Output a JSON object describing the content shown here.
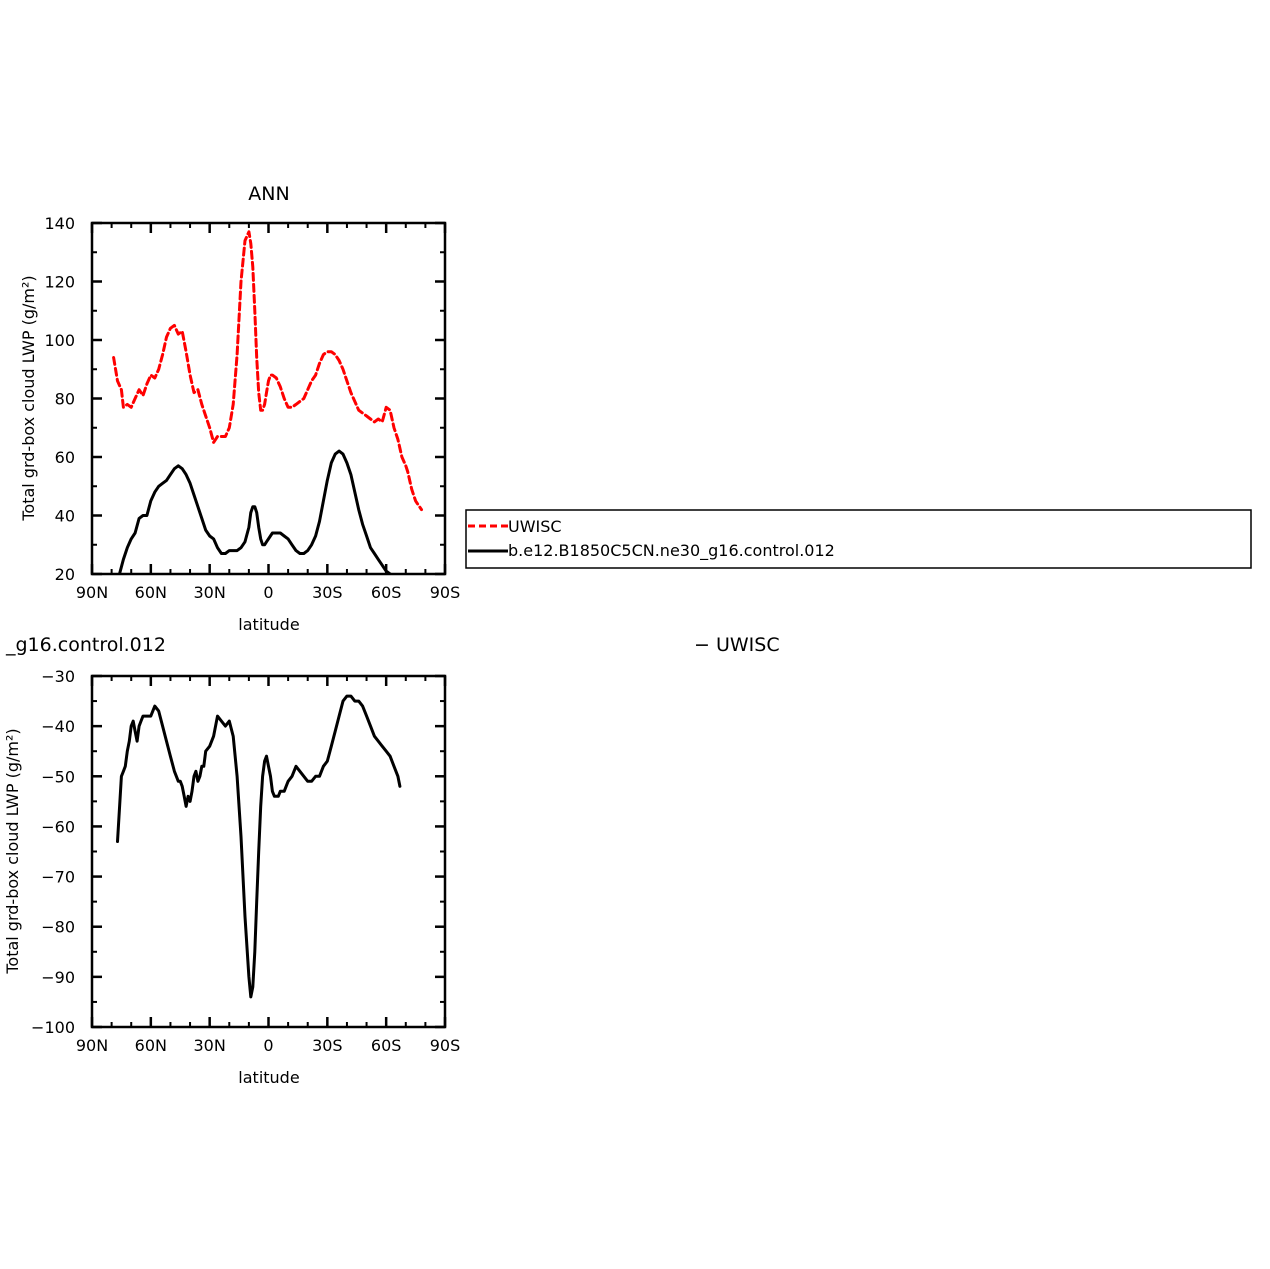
{
  "colors": {
    "obs": "#ff0000",
    "model": "#000000"
  },
  "chart_data": [
    {
      "type": "line",
      "title": "ANN",
      "xlabel": "latitude",
      "ylabel": "Total grd-box cloud LWP (g/m²)",
      "xlim": [
        90,
        -90
      ],
      "ylim": [
        20,
        140
      ],
      "x_ticks": [
        {
          "value": 90,
          "label": "90N"
        },
        {
          "value": 60,
          "label": "60N"
        },
        {
          "value": 30,
          "label": "30N"
        },
        {
          "value": 0,
          "label": "0"
        },
        {
          "value": -30,
          "label": "30S"
        },
        {
          "value": -60,
          "label": "60S"
        },
        {
          "value": -90,
          "label": "90S"
        }
      ],
      "y_ticks": [
        {
          "value": 20,
          "label": "20"
        },
        {
          "value": 40,
          "label": "40"
        },
        {
          "value": 60,
          "label": "60"
        },
        {
          "value": 80,
          "label": "80"
        },
        {
          "value": 100,
          "label": "100"
        },
        {
          "value": 120,
          "label": "120"
        },
        {
          "value": 140,
          "label": "140"
        }
      ],
      "grid": false,
      "legend_placement": "right",
      "series": [
        {
          "name": "UWISC",
          "style": "dashed",
          "color": "#ff0000",
          "x": [
            79,
            77,
            75,
            74,
            72,
            70,
            68,
            66,
            64,
            62,
            60,
            58,
            56,
            54,
            52,
            50,
            48,
            46,
            44,
            42,
            40,
            38,
            36,
            34,
            32,
            30,
            28,
            26,
            24,
            22,
            20,
            18,
            16,
            14,
            12,
            10,
            9,
            8,
            7,
            6,
            5,
            4,
            3,
            2,
            1,
            0,
            -1,
            -2,
            -4,
            -6,
            -8,
            -10,
            -12,
            -14,
            -16,
            -18,
            -20,
            -22,
            -24,
            -26,
            -28,
            -30,
            -32,
            -34,
            -36,
            -38,
            -40,
            -42,
            -44,
            -46,
            -48,
            -50,
            -52,
            -54,
            -56,
            -58,
            -60,
            -62,
            -64,
            -66,
            -68,
            -70,
            -71,
            -72,
            -73,
            -74,
            -75,
            -76,
            -77,
            -78
          ],
          "y": [
            94,
            86,
            83,
            77,
            78,
            77,
            80,
            83,
            81,
            85,
            88,
            87,
            90,
            95,
            101,
            104,
            105,
            102,
            103,
            96,
            88,
            82,
            83,
            78,
            74,
            70,
            65,
            67,
            67,
            67,
            70,
            78,
            95,
            120,
            134,
            137,
            133,
            125,
            110,
            94,
            82,
            76,
            76,
            78,
            82,
            86,
            88,
            88,
            87,
            84,
            80,
            77,
            77,
            78,
            79,
            80,
            83,
            86,
            88,
            92,
            95,
            96,
            96,
            95,
            93,
            90,
            86,
            82,
            79,
            76,
            75,
            74,
            73,
            72,
            73,
            72,
            77,
            76,
            70,
            66,
            60,
            57,
            55,
            52,
            49,
            47,
            45,
            44,
            43,
            42
          ]
        },
        {
          "name": "b.e12.B1850C5CN.ne30_g16.control.012",
          "style": "solid",
          "color": "#000000",
          "x": [
            80,
            76,
            74,
            72,
            70,
            68,
            66,
            64,
            62,
            60,
            58,
            56,
            54,
            52,
            50,
            48,
            46,
            44,
            42,
            40,
            38,
            36,
            34,
            32,
            30,
            28,
            26,
            24,
            22,
            20,
            18,
            16,
            14,
            12,
            10,
            9,
            8,
            7,
            6,
            5,
            4,
            3,
            2,
            1,
            0,
            -2,
            -4,
            -6,
            -8,
            -10,
            -12,
            -14,
            -16,
            -18,
            -20,
            -22,
            -24,
            -26,
            -28,
            -30,
            -32,
            -34,
            -36,
            -38,
            -40,
            -42,
            -44,
            -46,
            -48,
            -50,
            -52,
            -54,
            -56,
            -58,
            -60,
            -62,
            -64,
            -66,
            -68,
            -70
          ],
          "y": [
            14,
            20,
            25,
            29,
            32,
            34,
            39,
            40,
            40,
            45,
            48,
            50,
            51,
            52,
            54,
            56,
            57,
            56,
            54,
            51,
            47,
            43,
            39,
            35,
            33,
            32,
            29,
            27,
            27,
            28,
            28,
            28,
            29,
            31,
            36,
            41,
            43,
            43,
            41,
            36,
            32,
            30,
            30,
            31,
            32,
            34,
            34,
            34,
            33,
            32,
            30,
            28,
            27,
            27,
            28,
            30,
            33,
            38,
            45,
            52,
            58,
            61,
            62,
            61,
            58,
            54,
            48,
            42,
            37,
            33,
            29,
            27,
            25,
            23,
            21,
            20,
            19,
            18,
            17,
            16
          ]
        }
      ]
    },
    {
      "type": "line",
      "title": "_g16.control.012",
      "subtitle": "− UWISC",
      "xlabel": "latitude",
      "ylabel": "Total grd-box cloud LWP (g/m²)",
      "xlim": [
        90,
        -90
      ],
      "ylim": [
        -100,
        -30
      ],
      "x_ticks": [
        {
          "value": 90,
          "label": "90N"
        },
        {
          "value": 60,
          "label": "60N"
        },
        {
          "value": 30,
          "label": "30N"
        },
        {
          "value": 0,
          "label": "0"
        },
        {
          "value": -30,
          "label": "30S"
        },
        {
          "value": -60,
          "label": "60S"
        },
        {
          "value": -90,
          "label": "90S"
        }
      ],
      "y_ticks": [
        {
          "value": -30,
          "label": "−30"
        },
        {
          "value": -40,
          "label": "−40"
        },
        {
          "value": -50,
          "label": "−50"
        },
        {
          "value": -60,
          "label": "−60"
        },
        {
          "value": -70,
          "label": "−70"
        },
        {
          "value": -80,
          "label": "−80"
        },
        {
          "value": -90,
          "label": "−90"
        },
        {
          "value": -100,
          "label": "−100"
        }
      ],
      "grid": false,
      "series": [
        {
          "style": "solid",
          "color": "#000000",
          "x": [
            77,
            75,
            74,
            73,
            72,
            71,
            70,
            69,
            68,
            67,
            66,
            65,
            64,
            62,
            60,
            58,
            56,
            54,
            52,
            50,
            48,
            46,
            45,
            44,
            43,
            42,
            41,
            40,
            39,
            38,
            37,
            36,
            35,
            34,
            33,
            32,
            30,
            28,
            26,
            24,
            22,
            20,
            18,
            16,
            14,
            12,
            10,
            9,
            8,
            7,
            6,
            5,
            4,
            3,
            2,
            1,
            0,
            -1,
            -2,
            -3,
            -4,
            -5,
            -6,
            -8,
            -10,
            -12,
            -14,
            -16,
            -18,
            -20,
            -22,
            -24,
            -26,
            -28,
            -30,
            -32,
            -34,
            -36,
            -38,
            -40,
            -42,
            -44,
            -46,
            -48,
            -50,
            -52,
            -54,
            -56,
            -58,
            -60,
            -62,
            -64,
            -66,
            -67
          ],
          "y": [
            -63,
            -50,
            -49,
            -48,
            -45,
            -43,
            -40,
            -39,
            -41,
            -43,
            -40,
            -39,
            -38,
            -38,
            -38,
            -36,
            -37,
            -40,
            -43,
            -46,
            -49,
            -51,
            -51,
            -52,
            -54,
            -56,
            -54,
            -55,
            -53,
            -50,
            -49,
            -51,
            -50,
            -48,
            -48,
            -45,
            -44,
            -42,
            -38,
            -39,
            -40,
            -39,
            -42,
            -50,
            -62,
            -78,
            -90,
            -94,
            -92,
            -85,
            -75,
            -65,
            -56,
            -50,
            -47,
            -46,
            -48,
            -50,
            -53,
            -54,
            -54,
            -54,
            -53,
            -53,
            -51,
            -50,
            -48,
            -49,
            -50,
            -51,
            -51,
            -50,
            -50,
            -48,
            -47,
            -44,
            -41,
            -38,
            -35,
            -34,
            -34,
            -35,
            -35,
            -36,
            -38,
            -40,
            -42,
            -43,
            -44,
            -45,
            -46,
            -48,
            -50,
            -52
          ]
        }
      ]
    }
  ]
}
